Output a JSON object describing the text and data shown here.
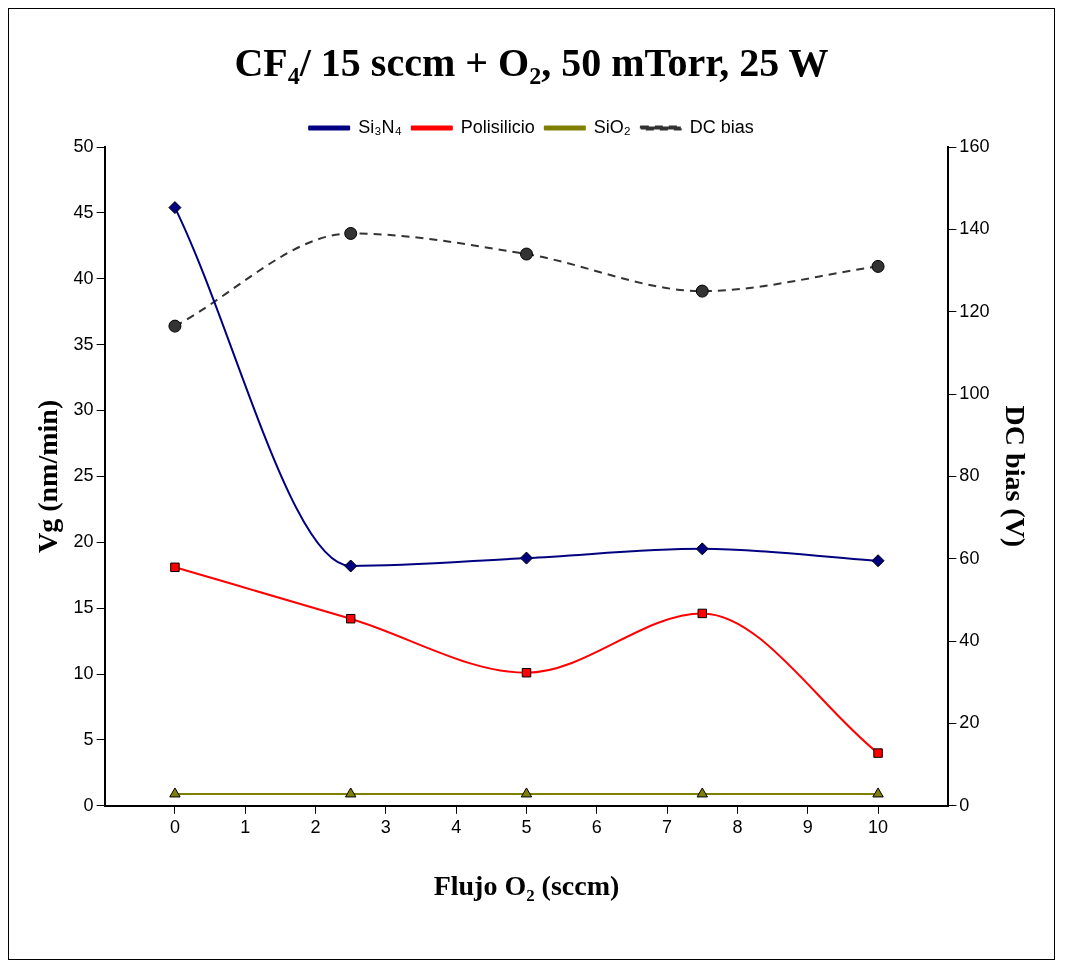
{
  "chart_data": {
    "type": "line",
    "title": "CF₄/ 15 sccm + O₂, 50 mTorr, 25 W",
    "xlabel": "Flujo O₂ (sccm)",
    "ylabel": "Vg (nm/min)",
    "y2label": "DC bias (V)",
    "x": [
      0,
      2.5,
      5,
      7.5,
      10
    ],
    "xlim": [
      -1,
      11
    ],
    "xticks": [
      0,
      1,
      2,
      3,
      4,
      5,
      6,
      7,
      8,
      9,
      10
    ],
    "ylim": [
      0,
      50
    ],
    "yticks": [
      0,
      5,
      10,
      15,
      20,
      25,
      30,
      35,
      40,
      45,
      50
    ],
    "y2lim": [
      0,
      160
    ],
    "y2ticks": [
      0,
      20,
      40,
      60,
      80,
      100,
      120,
      140,
      160
    ],
    "grid": false,
    "legend": "top",
    "series": [
      {
        "name": "Si₃N₄",
        "color": "#000080",
        "marker": "diamond",
        "values": [
          45.4,
          18.2,
          18.8,
          19.5,
          18.6
        ]
      },
      {
        "name": "Polisilicio",
        "color": "#ff0000",
        "marker": "square",
        "values": [
          18.1,
          14.2,
          10.1,
          14.6,
          4.0
        ]
      },
      {
        "name": "SiO₂",
        "color": "#808000",
        "marker": "triangle",
        "values": [
          0.9,
          0.9,
          0.9,
          0.9,
          0.9
        ]
      },
      {
        "name": "DC bias",
        "color": "#333333",
        "marker": "circle",
        "line_style": "dashed",
        "axis": "y2",
        "values": [
          116.5,
          139,
          134,
          125,
          131
        ]
      }
    ]
  }
}
